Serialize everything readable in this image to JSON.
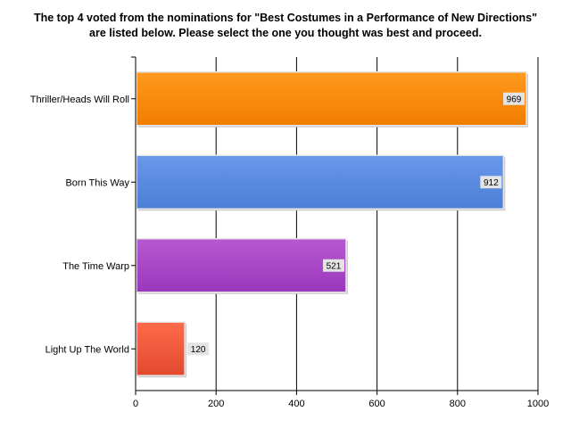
{
  "chart_data": {
    "type": "bar",
    "orientation": "horizontal",
    "title_lines": [
      "The top 4 voted from the nominations for \"Best Costumes in a Performance of New Directions\"",
      "are listed below. Please select the one you thought was best and proceed."
    ],
    "categories": [
      "Thriller/Heads Will Roll",
      "Born This Way",
      "The Time Warp",
      "Light Up The World"
    ],
    "values": [
      969,
      912,
      521,
      120
    ],
    "xlim": [
      0,
      1000
    ],
    "xticks": [
      "0",
      "200",
      "400",
      "600",
      "800",
      "1000"
    ],
    "grid": true,
    "legend": "none",
    "colors": [
      "#f07d00",
      "#4b7fd6",
      "#9a37bb",
      "#e24a2f"
    ],
    "color_tops": [
      "#ff9a1e",
      "#6a97ea",
      "#b659d1",
      "#ff6a4a"
    ]
  }
}
